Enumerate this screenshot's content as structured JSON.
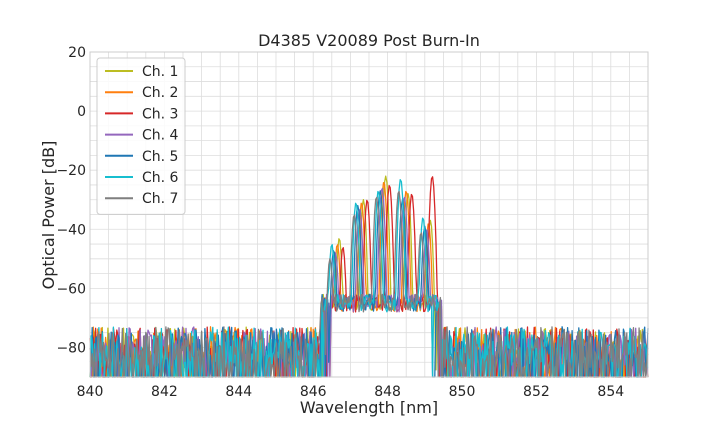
{
  "chart_data": {
    "type": "line",
    "title": "D4385 V20089 Post Burn-In",
    "xlabel": "Wavelength [nm]",
    "ylabel": "Optical Power [dB]",
    "xlim": [
      840,
      855
    ],
    "ylim": [
      -90,
      20
    ],
    "x_ticks": [
      840,
      842,
      844,
      846,
      848,
      850,
      852,
      854
    ],
    "y_ticks": [
      20,
      0,
      -20,
      -40,
      -60,
      -80
    ],
    "grid": true,
    "legend_position": "top-left",
    "noise_floor_db": -72,
    "series": [
      {
        "name": "Ch. 1",
        "color": "#bcbd22",
        "peak_wavelengths": [
          846.7,
          847.35,
          847.95,
          848.55,
          849.15
        ],
        "peak_powers": [
          -43,
          -30,
          -22,
          -28,
          -37
        ]
      },
      {
        "name": "Ch. 2",
        "color": "#ff7f0e",
        "peak_wavelengths": [
          846.65,
          847.3,
          847.9,
          848.5,
          849.1
        ],
        "peak_powers": [
          -45,
          -31,
          -24,
          -27,
          -38
        ]
      },
      {
        "name": "Ch. 3",
        "color": "#d62728",
        "peak_wavelengths": [
          846.8,
          847.45,
          848.05,
          848.65,
          849.2
        ],
        "peak_powers": [
          -46,
          -30,
          -25,
          -28,
          -22
        ]
      },
      {
        "name": "Ch. 4",
        "color": "#9467bd",
        "peak_wavelengths": [
          846.6,
          847.25,
          847.85,
          848.45,
          849.05
        ],
        "peak_powers": [
          -48,
          -33,
          -26,
          -29,
          -40
        ]
      },
      {
        "name": "Ch. 5",
        "color": "#1f77b4",
        "peak_wavelengths": [
          846.55,
          847.2,
          847.8,
          848.4,
          849.0
        ],
        "peak_powers": [
          -47,
          -32,
          -27,
          -30,
          -39
        ]
      },
      {
        "name": "Ch. 6",
        "color": "#17becf",
        "peak_wavelengths": [
          846.5,
          847.15,
          847.75,
          848.35,
          848.95
        ],
        "peak_powers": [
          -45,
          -31,
          -27,
          -23,
          -36
        ]
      },
      {
        "name": "Ch. 7",
        "color": "#7f7f7f",
        "peak_wavelengths": [
          846.45,
          847.1,
          847.7,
          848.3,
          848.9
        ],
        "peak_powers": [
          -50,
          -35,
          -29,
          -27,
          -41
        ]
      }
    ]
  }
}
